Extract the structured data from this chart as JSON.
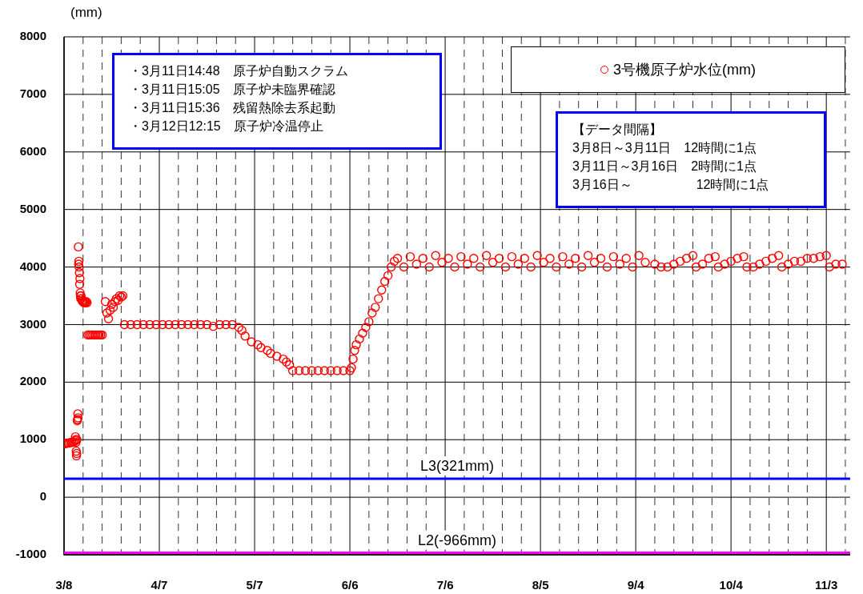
{
  "chart_data": {
    "type": "scatter",
    "ylabel": "(mm)",
    "legend": "top right",
    "marker": "circle",
    "grid": true,
    "xlim": [
      "--03-08",
      "--11-10T12:00"
    ],
    "xticks": [
      {
        "value": "--03-08",
        "label": "3/8"
      },
      {
        "value": "--03-14",
        "label": null
      },
      {
        "value": "--03-20",
        "label": null
      },
      {
        "value": "--03-26",
        "label": null
      },
      {
        "value": "--04-01",
        "label": null
      },
      {
        "value": "--04-07",
        "label": "4/7"
      },
      {
        "value": "--04-13",
        "label": null
      },
      {
        "value": "--04-19",
        "label": null
      },
      {
        "value": "--04-25",
        "label": null
      },
      {
        "value": "--05-01",
        "label": null
      },
      {
        "value": "--05-07",
        "label": "5/7"
      },
      {
        "value": "--05-13",
        "label": null
      },
      {
        "value": "--05-19",
        "label": null
      },
      {
        "value": "--05-25",
        "label": null
      },
      {
        "value": "--05-31",
        "label": null
      },
      {
        "value": "--06-06",
        "label": "6/6"
      },
      {
        "value": "--06-12",
        "label": null
      },
      {
        "value": "--06-18",
        "label": null
      },
      {
        "value": "--06-24",
        "label": null
      },
      {
        "value": "--06-30",
        "label": null
      },
      {
        "value": "--07-06",
        "label": "7/6"
      },
      {
        "value": "--07-12",
        "label": null
      },
      {
        "value": "--07-18",
        "label": null
      },
      {
        "value": "--07-24",
        "label": null
      },
      {
        "value": "--07-30",
        "label": null
      },
      {
        "value": "--08-05",
        "label": "8/5"
      },
      {
        "value": "--08-11",
        "label": null
      },
      {
        "value": "--08-17",
        "label": null
      },
      {
        "value": "--08-23",
        "label": null
      },
      {
        "value": "--08-29",
        "label": null
      },
      {
        "value": "--09-04",
        "label": "9/4"
      },
      {
        "value": "--09-10",
        "label": null
      },
      {
        "value": "--09-16",
        "label": null
      },
      {
        "value": "--09-22",
        "label": null
      },
      {
        "value": "--09-28",
        "label": null
      },
      {
        "value": "--10-04",
        "label": "10/4"
      },
      {
        "value": "--10-10",
        "label": null
      },
      {
        "value": "--10-16",
        "label": null
      },
      {
        "value": "--10-22",
        "label": null
      },
      {
        "value": "--10-28",
        "label": null
      },
      {
        "value": "--11-03",
        "label": "11/3"
      },
      {
        "value": "--11-09",
        "label": null
      }
    ],
    "ylim": [
      -1000,
      8000
    ],
    "yticks": [
      -1000,
      0,
      1000,
      2000,
      3000,
      4000,
      5000,
      6000,
      7000,
      8000
    ],
    "ref_lines": [
      {
        "axis": "y",
        "value": 321,
        "label": "L3(321mm)",
        "color": "#0000ff"
      },
      {
        "axis": "y",
        "value": -966,
        "label": "L2(-966mm)",
        "color": "#ff00ff"
      }
    ],
    "annotations": [
      "・3月11日14:48　原子炉自動スクラム",
      "・3月11日15:05　原子炉未臨界確認",
      "・3月11日15:36　残留熱除去系起動",
      "・3月12日12:15　原子炉冷温停止",
      "【データ間隔】",
      "3月8日～3月11日　12時間に1点",
      "3月11日～3月16日　2時間に1点",
      "3月16日～　　　　　12時間に1点"
    ],
    "series": [
      {
        "name": "3号機原子炉水位(mm)",
        "color": "#ff0000",
        "x": [
          "--03-08T00:00",
          "--03-08T12:00",
          "--03-09T00:00",
          "--03-09T12:00",
          "--03-10T00:00",
          "--03-10T12:00",
          "--03-11T00:00",
          "--03-11T12:00",
          "--03-11T14:00",
          "--03-11T16:00",
          "--03-11T18:00",
          "--03-11T20:00",
          "--03-11T22:00",
          "--03-12T00:00",
          "--03-12T02:00",
          "--03-12T04:00",
          "--03-12T06:00",
          "--03-12T08:00",
          "--03-12T10:00",
          "--03-12T12:00",
          "--03-12T14:00",
          "--03-12T16:00",
          "--03-12T18:00",
          "--03-12T20:00",
          "--03-12T22:00",
          "--03-13T00:00",
          "--03-13T02:00",
          "--03-13T04:00",
          "--03-13T06:00",
          "--03-13T08:00",
          "--03-13T12:00",
          "--03-13T16:00",
          "--03-13T20:00",
          "--03-14T00:00",
          "--03-14T06:00",
          "--03-14T12:00",
          "--03-14T18:00",
          "--03-15T00:00",
          "--03-15T06:00",
          "--03-15T12:00",
          "--03-16T00:00",
          "--03-16T12:00",
          "--03-17T00:00",
          "--03-17T12:00",
          "--03-18T00:00",
          "--03-18T12:00",
          "--03-19T00:00",
          "--03-19T12:00",
          "--03-20T00:00",
          "--03-21T00:00",
          "--03-21T12:00",
          "--03-22T00:00",
          "--03-22T12:00",
          "--03-23T00:00",
          "--03-23T12:00",
          "--03-24T00:00",
          "--03-24T12:00",
          "--03-25T00:00",
          "--03-25T12:00",
          "--03-26T00:00",
          "--03-26T12:00",
          "--03-27T00:00",
          "--03-29T00:00",
          "--03-31T00:00",
          "--04-02T00:00",
          "--04-04T00:00",
          "--04-06T00:00",
          "--04-08T00:00",
          "--04-10T00:00",
          "--04-12T00:00",
          "--04-14T00:00",
          "--04-16T00:00",
          "--04-18T00:00",
          "--04-20T00:00",
          "--04-22T00:00",
          "--04-24T00:00",
          "--04-26T00:00",
          "--04-28T00:00",
          "--04-30T00:00",
          "--05-02T00:00",
          "--05-03T00:00",
          "--05-04T00:00",
          "--05-06T00:00",
          "--05-08T00:00",
          "--05-09T00:00",
          "--05-11T00:00",
          "--05-12T00:00",
          "--05-14T00:00",
          "--05-16T00:00",
          "--05-17T00:00",
          "--05-18T00:00",
          "--05-19T00:00",
          "--05-21T00:00",
          "--05-23T00:00",
          "--05-25T00:00",
          "--05-27T00:00",
          "--05-29T00:00",
          "--05-31T00:00",
          "--06-02T00:00",
          "--06-04T00:00",
          "--06-06T00:00",
          "--06-06T12:00",
          "--06-07T00:00",
          "--06-07T12:00",
          "--06-08T00:00",
          "--06-09T00:00",
          "--06-10T00:00",
          "--06-11T00:00",
          "--06-12T00:00",
          "--06-13T00:00",
          "--06-14T00:00",
          "--06-15T00:00",
          "--06-16T00:00",
          "--06-17T00:00",
          "--06-18T00:00",
          "--06-19T00:00",
          "--06-20T00:00",
          "--06-21T00:00",
          "--06-23T00:00",
          "--06-25T00:00",
          "--06-27T00:00",
          "--06-29T00:00",
          "--07-01T00:00",
          "--07-03T00:00",
          "--07-05T00:00",
          "--07-07T00:00",
          "--07-09T00:00",
          "--07-11T00:00",
          "--07-13T00:00",
          "--07-15T00:00",
          "--07-17T00:00",
          "--07-19T00:00",
          "--07-21T00:00",
          "--07-23T00:00",
          "--07-25T00:00",
          "--07-27T00:00",
          "--07-29T00:00",
          "--07-31T00:00",
          "--08-02T00:00",
          "--08-04T00:00",
          "--08-06T00:00",
          "--08-08T00:00",
          "--08-10T00:00",
          "--08-12T00:00",
          "--08-14T00:00",
          "--08-16T00:00",
          "--08-18T00:00",
          "--08-20T00:00",
          "--08-22T00:00",
          "--08-24T00:00",
          "--08-26T00:00",
          "--08-28T00:00",
          "--08-30T00:00",
          "--09-01T00:00",
          "--09-03T00:00",
          "--09-05T00:00",
          "--09-07T00:00",
          "--09-10T00:00",
          "--09-12T00:00",
          "--09-14T00:00",
          "--09-16T00:00",
          "--09-18T00:00",
          "--09-20T00:00",
          "--09-22T00:00",
          "--09-23T00:00",
          "--09-25T00:00",
          "--09-27T00:00",
          "--09-29T00:00",
          "--09-30T00:00",
          "--10-02T00:00",
          "--10-04T00:00",
          "--10-06T00:00",
          "--10-08T00:00",
          "--10-09T00:00",
          "--10-11T00:00",
          "--10-13T00:00",
          "--10-15T00:00",
          "--10-17T00:00",
          "--10-19T00:00",
          "--10-20T00:00",
          "--10-22T00:00",
          "--10-24T00:00",
          "--10-26T00:00",
          "--10-28T00:00",
          "--10-30T00:00",
          "--11-01T00:00",
          "--11-03T00:00",
          "--11-04T00:00",
          "--11-06T00:00",
          "--11-08T00:00"
        ],
        "values": [
          930,
          930,
          940,
          940,
          950,
          950,
          960,
          980,
          1050,
          1000,
          950,
          800,
          720,
          760,
          1000,
          1330,
          1350,
          1450,
          1380,
          4350,
          4050,
          4100,
          4000,
          3900,
          3700,
          3800,
          3550,
          3500,
          3450,
          3500,
          3450,
          3420,
          3400,
          3400,
          3380,
          3400,
          3380,
          3400,
          3380,
          2820,
          2820,
          2820,
          2820,
          2820,
          2820,
          2820,
          2820,
          2820,
          2820,
          3400,
          3200,
          3100,
          3250,
          3350,
          3300,
          3400,
          3450,
          3420,
          3500,
          3480,
          3500,
          3000,
          3000,
          3000,
          3000,
          3000,
          3000,
          3000,
          3000,
          3000,
          3000,
          3000,
          3000,
          3000,
          3000,
          2970,
          3000,
          3000,
          3000,
          2950,
          2900,
          2800,
          2700,
          2650,
          2600,
          2550,
          2500,
          2450,
          2400,
          2350,
          2300,
          2200,
          2200,
          2200,
          2200,
          2200,
          2200,
          2200,
          2200,
          2200,
          2200,
          2250,
          2400,
          2550,
          2650,
          2750,
          2850,
          2950,
          3050,
          3200,
          3300,
          3450,
          3600,
          3750,
          3850,
          4000,
          4100,
          4150,
          4000,
          4180,
          4050,
          4150,
          4000,
          4200,
          4080,
          4150,
          4000,
          4180,
          4050,
          4150,
          4000,
          4200,
          4080,
          4150,
          4000,
          4180,
          4050,
          4150,
          4000,
          4200,
          4080,
          4150,
          4000,
          4180,
          4050,
          4150,
          4000,
          4200,
          4080,
          4150,
          4000,
          4180,
          4050,
          4150,
          4000,
          4200,
          4080,
          4050,
          4000,
          4000,
          4050,
          4100,
          4150,
          4200,
          4000,
          4050,
          4150,
          4180,
          4000,
          4050,
          4100,
          4150,
          4180,
          4000,
          4000,
          4050,
          4100,
          4150,
          4200,
          4000,
          4050,
          4100,
          4100,
          4150,
          4150,
          4180,
          4200,
          4000,
          4050,
          4050
        ]
      }
    ]
  }
}
